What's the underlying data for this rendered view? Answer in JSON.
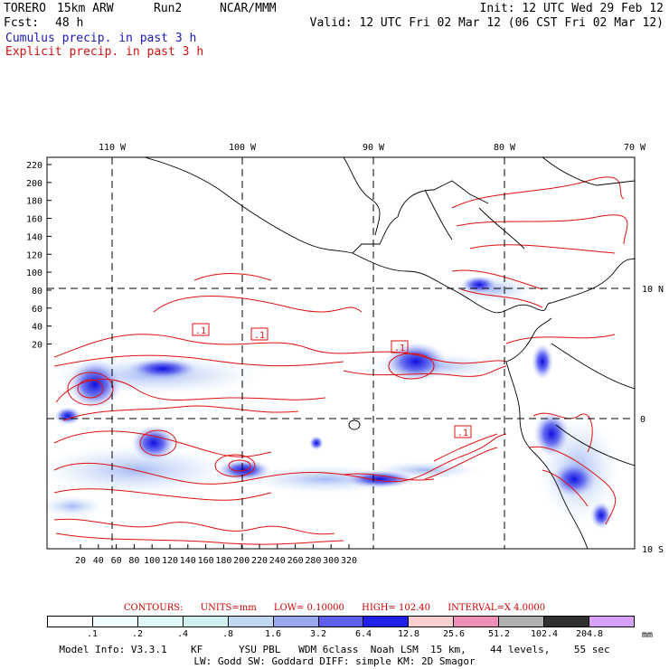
{
  "header": {
    "model": "TORERO",
    "resolution": "15km ARW",
    "run": "Run2",
    "org": "NCAR/MMM",
    "init": "Init: 12 UTC Wed 29 Feb 12",
    "fcst_label": "Fcst:",
    "fcst_value": "48 h",
    "valid": "Valid: 12 UTC Fri 02 Mar 12 (06 CST Fri 02 Mar 12)",
    "field1": "Cumulus precip. in past 3 h",
    "field2": "Explicit precip. in past 3 h"
  },
  "map": {
    "lon_labels": [
      "110 W",
      "100 W",
      "90 W",
      "80 W",
      "70 W"
    ],
    "lat_labels": [
      "10 N",
      "0",
      "10 S"
    ],
    "y_ticks": [
      "220",
      "200",
      "180",
      "160",
      "140",
      "120",
      "100",
      "80",
      "60",
      "40",
      "20"
    ],
    "x_ticks": [
      "20",
      "40",
      "60",
      "80",
      "100",
      "120",
      "140",
      "160",
      "180",
      "200",
      "220",
      "240",
      "260",
      "280",
      "300",
      "320"
    ],
    "contour_labels": [
      ".1",
      ".1",
      ".1",
      ".1"
    ]
  },
  "contours": {
    "title": "CONTOURS:",
    "units": "UNITS=mm",
    "low": "LOW= 0.10000",
    "high": "HIGH= 102.40",
    "interval": "INTERVAL=X 4.0000"
  },
  "colorbar": {
    "labels": [
      ".1",
      ".2",
      ".4",
      ".8",
      "1.6",
      "3.2",
      "6.4",
      "12.8",
      "25.6",
      "51.2",
      "102.4",
      "204.8"
    ],
    "unit": "mm",
    "colors": [
      "#ffffff",
      "#f0ffff",
      "#e0f8f8",
      "#d0f0f0",
      "#c0d8f0",
      "#9aa8f0",
      "#6060f0",
      "#2020e8",
      "#f8d0d0",
      "#f090b8",
      "#b0b0b0",
      "#303030",
      "#d8a0f8"
    ]
  },
  "model_info": {
    "line1": "Model Info: V3.3.1    KF      YSU PBL   WDM 6class  Noah LSM  15 km,    44 levels,    55 sec",
    "line2": "LW: Godd SW: Goddard DIFF: simple KM: 2D Smagor"
  }
}
